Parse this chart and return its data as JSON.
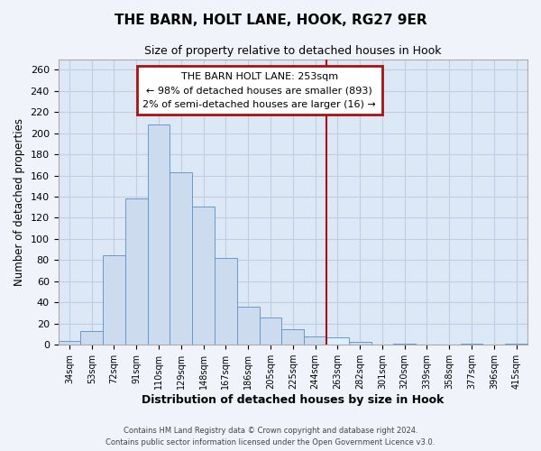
{
  "title": "THE BARN, HOLT LANE, HOOK, RG27 9ER",
  "subtitle": "Size of property relative to detached houses in Hook",
  "xlabel": "Distribution of detached houses by size in Hook",
  "ylabel": "Number of detached properties",
  "bin_labels": [
    "34sqm",
    "53sqm",
    "72sqm",
    "91sqm",
    "110sqm",
    "129sqm",
    "148sqm",
    "167sqm",
    "186sqm",
    "205sqm",
    "225sqm",
    "244sqm",
    "263sqm",
    "282sqm",
    "301sqm",
    "320sqm",
    "339sqm",
    "358sqm",
    "377sqm",
    "396sqm",
    "415sqm"
  ],
  "bar_heights": [
    4,
    13,
    85,
    138,
    208,
    163,
    131,
    82,
    36,
    26,
    15,
    8,
    7,
    3,
    0,
    1,
    0,
    0,
    1,
    0,
    1
  ],
  "bar_color": "#ccdcee",
  "bar_edge_color": "#6699cc",
  "highlight_bar_index": 12,
  "highlight_bar_color": "#ddeeff",
  "highlight_bar_edge_color": "#6699cc",
  "vline_x": 11.5,
  "vline_color": "#aa1111",
  "ylim": [
    0,
    270
  ],
  "yticks": [
    0,
    20,
    40,
    60,
    80,
    100,
    120,
    140,
    160,
    180,
    200,
    220,
    240,
    260
  ],
  "annotation_title": "THE BARN HOLT LANE: 253sqm",
  "annotation_line1": "← 98% of detached houses are smaller (893)",
  "annotation_line2": "2% of semi-detached houses are larger (16) →",
  "annotation_box_color": "#aa1111",
  "footer_line1": "Contains HM Land Registry data © Crown copyright and database right 2024.",
  "footer_line2": "Contains public sector information licensed under the Open Government Licence v3.0.",
  "background_color": "#f0f4fa",
  "plot_background_color": "#dce8f5",
  "grid_color": "#c0cfe0"
}
